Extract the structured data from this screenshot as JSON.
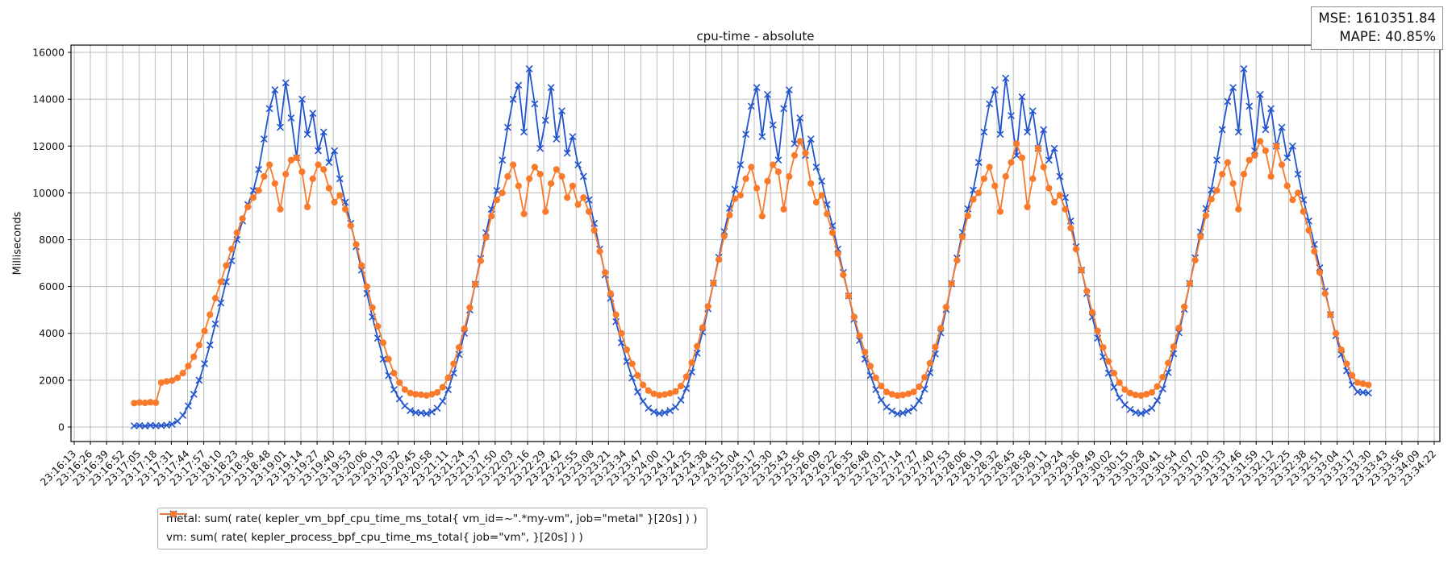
{
  "figure": {
    "title": "cpu-time - absolute",
    "metrics_line1": "MSE: 1610351.84",
    "metrics_line2": "MAPE: 40.85%"
  },
  "chart_data": {
    "type": "line",
    "title": "cpu-time - absolute",
    "xlabel": "",
    "ylabel": "Milliseconds",
    "grid": true,
    "legend_position": "lower left below axis",
    "y_ticks": [
      0,
      2000,
      4000,
      6000,
      8000,
      10000,
      12000,
      14000,
      16000
    ],
    "ylim": [
      -620,
      16310
    ],
    "x_tick_labels": [
      "23:16:13",
      "23:16:26",
      "23:16:39",
      "23:16:52",
      "23:17:05",
      "23:17:18",
      "23:17:31",
      "23:17:44",
      "23:17:57",
      "23:18:10",
      "23:18:23",
      "23:18:36",
      "23:18:48",
      "23:19:01",
      "23:19:14",
      "23:19:27",
      "23:19:40",
      "23:19:53",
      "23:20:06",
      "23:20:19",
      "23:20:32",
      "23:20:45",
      "23:20:58",
      "23:21:11",
      "23:21:24",
      "23:21:37",
      "23:21:50",
      "23:22:03",
      "23:22:16",
      "23:22:29",
      "23:22:42",
      "23:22:55",
      "23:23:08",
      "23:23:21",
      "23:23:34",
      "23:23:47",
      "23:24:00",
      "23:24:12",
      "23:24:25",
      "23:24:38",
      "23:24:51",
      "23:25:04",
      "23:25:17",
      "23:25:30",
      "23:25:43",
      "23:25:56",
      "23:26:09",
      "23:26:22",
      "23:26:35",
      "23:26:48",
      "23:27:01",
      "23:27:14",
      "23:27:27",
      "23:27:40",
      "23:27:53",
      "23:28:06",
      "23:28:19",
      "23:28:32",
      "23:28:45",
      "23:28:58",
      "23:29:11",
      "23:29:24",
      "23:29:36",
      "23:29:49",
      "23:30:02",
      "23:30:15",
      "23:30:28",
      "23:30:41",
      "23:30:54",
      "23:31:07",
      "23:31:20",
      "23:31:33",
      "23:31:46",
      "23:31:59",
      "23:32:12",
      "23:32:25",
      "23:32:38",
      "23:32:51",
      "23:33:04",
      "23:33:17",
      "23:33:30",
      "23:33:43",
      "23:33:56",
      "23:34:09",
      "23:34:22"
    ],
    "x_seconds_per_tick": 12.96,
    "series_x_start_s": 48,
    "series_x_step_s": 4.333,
    "metrics_box": {
      "lines": [
        "MSE: 1610351.84",
        "MAPE: 40.85%"
      ]
    },
    "series": [
      {
        "name": "metal",
        "legend_label": "metal: sum( rate( kepler_vm_bpf_cpu_time_ms_total{ vm_id=~\".*my-vm\", job=\"metal\" }[20s] ) )",
        "color": "#2355cd",
        "marker": "x",
        "values": [
          50,
          60,
          40,
          70,
          50,
          60,
          80,
          120,
          250,
          500,
          900,
          1400,
          2000,
          2700,
          3500,
          4400,
          5300,
          6200,
          7100,
          8000,
          8800,
          9500,
          10100,
          11000,
          12300,
          13600,
          14400,
          12800,
          14700,
          13200,
          11500,
          14000,
          12500,
          13400,
          11800,
          12600,
          11300,
          11800,
          10600,
          9600,
          8700,
          7700,
          6700,
          5700,
          4700,
          3800,
          2900,
          2200,
          1600,
          1200,
          900,
          700,
          620,
          600,
          570,
          650,
          800,
          1100,
          1600,
          2300,
          3100,
          4000,
          5000,
          6100,
          7200,
          8300,
          9300,
          10100,
          11400,
          12800,
          14000,
          14600,
          12600,
          15300,
          13800,
          11900,
          13100,
          14500,
          12300,
          13500,
          11700,
          12400,
          11200,
          10700,
          9700,
          8700,
          7600,
          6500,
          5500,
          4500,
          3600,
          2800,
          2100,
          1500,
          1100,
          800,
          650,
          580,
          620,
          700,
          850,
          1150,
          1650,
          2350,
          3150,
          4050,
          5050,
          6150,
          7250,
          8350,
          9350,
          10150,
          11200,
          12500,
          13700,
          14500,
          12400,
          14200,
          12900,
          11400,
          13600,
          14400,
          12100,
          13200,
          11600,
          12300,
          11100,
          10500,
          9500,
          8600,
          7600,
          6600,
          5600,
          4600,
          3700,
          2900,
          2200,
          1600,
          1150,
          850,
          680,
          560,
          600,
          680,
          820,
          1120,
          1620,
          2320,
          3120,
          4020,
          5020,
          6120,
          7220,
          8320,
          9320,
          10120,
          11300,
          12600,
          13800,
          14400,
          12500,
          14900,
          13300,
          11600,
          14100,
          12600,
          13500,
          11900,
          12700,
          11400,
          11900,
          10700,
          9800,
          8800,
          7700,
          6700,
          5700,
          4700,
          3800,
          3000,
          2300,
          1700,
          1250,
          950,
          750,
          620,
          580,
          660,
          800,
          1130,
          1630,
          2330,
          3130,
          4030,
          5030,
          6130,
          7230,
          8330,
          9330,
          10130,
          11400,
          12700,
          13900,
          14500,
          12600,
          15300,
          13700,
          11800,
          14200,
          12700,
          13600,
          12000,
          12800,
          11500,
          12000,
          10800,
          9700,
          8800,
          7800,
          6800,
          5800,
          4800,
          3900,
          3100,
          2400,
          1800,
          1500,
          1480,
          1450
        ]
      },
      {
        "name": "vm",
        "legend_label": "vm: sum( rate( kepler_process_bpf_cpu_time_ms_total{ job=\"vm\", }[20s] ) )",
        "color": "#f97a2b",
        "marker": "circle",
        "values": [
          1020,
          1050,
          1030,
          1060,
          1040,
          1900,
          1950,
          1980,
          2100,
          2300,
          2600,
          3000,
          3500,
          4100,
          4800,
          5500,
          6200,
          6900,
          7600,
          8300,
          8900,
          9400,
          9800,
          10100,
          10700,
          11200,
          10400,
          9300,
          10800,
          11400,
          11500,
          10900,
          9400,
          10600,
          11200,
          11000,
          10200,
          9600,
          9900,
          9300,
          8600,
          7800,
          6900,
          6000,
          5100,
          4300,
          3600,
          2900,
          2300,
          1900,
          1600,
          1450,
          1400,
          1380,
          1350,
          1400,
          1480,
          1700,
          2100,
          2700,
          3400,
          4200,
          5100,
          6100,
          7100,
          8100,
          9000,
          9700,
          10000,
          10700,
          11200,
          10300,
          9100,
          10600,
          11100,
          10800,
          9200,
          10400,
          11000,
          10700,
          9800,
          10300,
          9500,
          9800,
          9200,
          8400,
          7500,
          6600,
          5700,
          4800,
          4000,
          3300,
          2700,
          2200,
          1800,
          1550,
          1420,
          1360,
          1390,
          1440,
          1520,
          1750,
          2150,
          2750,
          3450,
          4250,
          5150,
          6150,
          7150,
          8150,
          9050,
          9750,
          9900,
          10600,
          11100,
          10200,
          9000,
          10500,
          11200,
          10900,
          9300,
          10700,
          11600,
          12200,
          11700,
          10400,
          9600,
          9900,
          9100,
          8300,
          7400,
          6500,
          5600,
          4700,
          3900,
          3200,
          2600,
          2100,
          1750,
          1500,
          1400,
          1340,
          1370,
          1420,
          1500,
          1720,
          2120,
          2720,
          3420,
          4220,
          5120,
          6120,
          7120,
          8120,
          9020,
          9720,
          10000,
          10600,
          11100,
          10300,
          9200,
          10700,
          11300,
          12100,
          11500,
          9400,
          10600,
          11900,
          11100,
          10200,
          9600,
          9900,
          9300,
          8500,
          7600,
          6700,
          5800,
          4900,
          4100,
          3400,
          2800,
          2300,
          1900,
          1600,
          1450,
          1370,
          1340,
          1400,
          1480,
          1730,
          2130,
          2730,
          3430,
          4230,
          5130,
          6130,
          7130,
          8130,
          9030,
          9730,
          10100,
          10800,
          11300,
          10400,
          9300,
          10800,
          11400,
          11600,
          12200,
          11800,
          10700,
          12000,
          11200,
          10300,
          9700,
          10000,
          9200,
          8400,
          7500,
          6600,
          5700,
          4800,
          4000,
          3300,
          2700,
          2200,
          1900,
          1850,
          1800
        ]
      }
    ]
  }
}
